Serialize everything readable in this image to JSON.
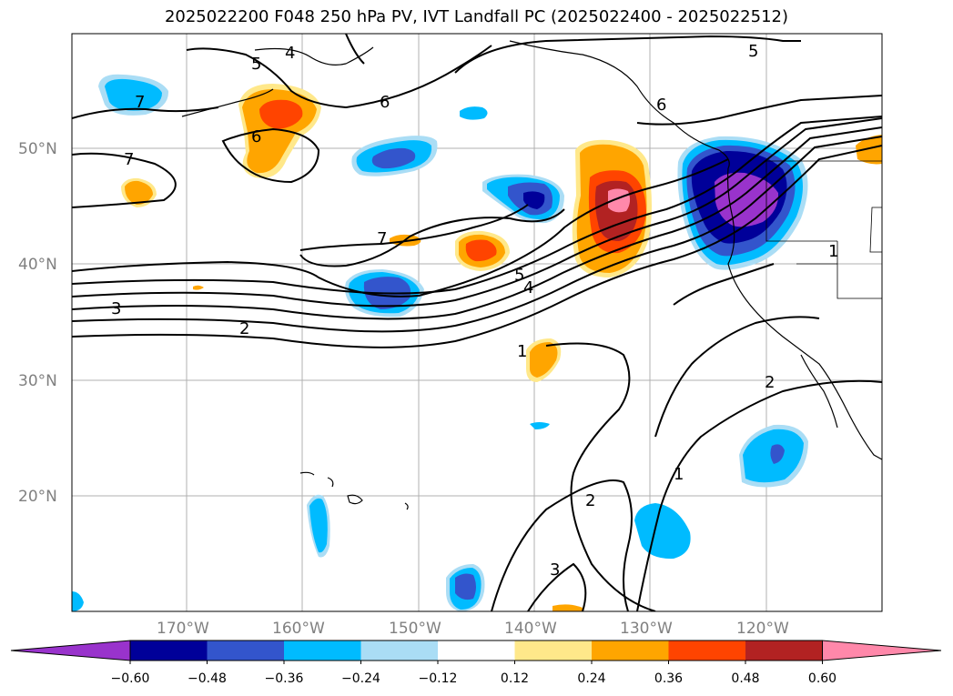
{
  "title": "2025022200 F048 250 hPa PV, IVT Landfall PC (2025022400 - 2025022512)",
  "lat_ticks": [
    "50°N",
    "40°N",
    "30°N",
    "20°N"
  ],
  "lon_ticks": [
    "170°W",
    "160°W",
    "150°W",
    "140°W",
    "130°W",
    "120°W"
  ],
  "colorbar": {
    "ticks": [
      "−0.60",
      "−0.48",
      "−0.36",
      "−0.24",
      "−0.12",
      "0.12",
      "0.24",
      "0.36",
      "0.48",
      "0.60"
    ],
    "colors": [
      "#9933cc",
      "#000099",
      "#3355cc",
      "#00bbff",
      "#aaddf5",
      "#ffffff",
      "#ffe88a",
      "#ffa500",
      "#ff4400",
      "#b22222",
      "#ff88aa"
    ]
  },
  "contour_labels": [
    "4",
    "5",
    "6",
    "7",
    "6",
    "7",
    "3",
    "2",
    "5",
    "4",
    "1",
    "1",
    "2",
    "1",
    "2",
    "3",
    "5",
    "6",
    "7"
  ]
}
